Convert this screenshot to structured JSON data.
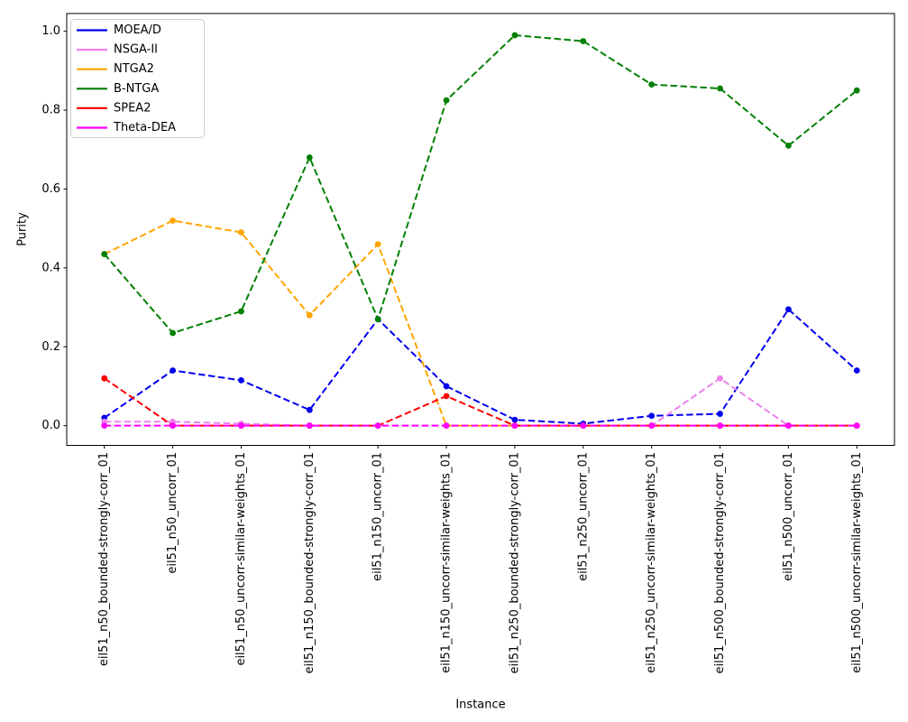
{
  "chart_data": {
    "type": "line",
    "title": "",
    "xlabel": "Instance",
    "ylabel": "Purity",
    "line_style": "dashed",
    "marker": "circle",
    "grid": false,
    "legend_position": "upper left",
    "xlim": [
      -0.55,
      11.55
    ],
    "ylim": [
      -0.05,
      1.045
    ],
    "yticks": [
      {
        "value": 0.0,
        "label": "0.0"
      },
      {
        "value": 0.2,
        "label": "0.2"
      },
      {
        "value": 0.4,
        "label": "0.4"
      },
      {
        "value": 0.6,
        "label": "0.6"
      },
      {
        "value": 0.8,
        "label": "0.8"
      },
      {
        "value": 1.0,
        "label": "1.0"
      }
    ],
    "categories": [
      "eil51_n50_bounded-strongly-corr_01",
      "eil51_n50_uncorr_01",
      "eil51_n50_uncorr-similar-weights_01",
      "eil51_n150_bounded-strongly-corr_01",
      "eil51_n150_uncorr_01",
      "eil51_n150_uncorr-similar-weights_01",
      "eil51_n250_bounded-strongly-corr_01",
      "eil51_n250_uncorr_01",
      "eil51_n250_uncorr-similar-weights_01",
      "eil51_n500_bounded-strongly-corr_01",
      "eil51_n500_uncorr_01",
      "eil51_n500_uncorr-similar-weights_01"
    ],
    "series": [
      {
        "name": "MOEA/D",
        "color": "#0000ee",
        "values": [
          0.02,
          0.14,
          0.115,
          0.04,
          0.27,
          0.1,
          0.015,
          0.005,
          0.025,
          0.03,
          0.295,
          0.14
        ]
      },
      {
        "name": "NSGA-II",
        "color": "#ee82ee",
        "values": [
          0.01,
          0.01,
          0.005,
          0.0,
          0.0,
          0.0,
          0.0,
          0.0,
          0.0,
          0.12,
          0.0,
          0.0
        ]
      },
      {
        "name": "NTGA2",
        "color": "#ffa500",
        "values": [
          0.435,
          0.52,
          0.49,
          0.28,
          0.46,
          0.0,
          0.0,
          0.0,
          0.0,
          0.0,
          0.0,
          0.0
        ]
      },
      {
        "name": "B-NTGA",
        "color": "#008000",
        "values": [
          0.435,
          0.235,
          0.29,
          0.68,
          0.27,
          0.825,
          0.99,
          0.975,
          0.865,
          0.855,
          0.71,
          0.85
        ]
      },
      {
        "name": "SPEA2",
        "color": "#ff0000",
        "values": [
          0.12,
          0.0,
          0.0,
          0.0,
          0.0,
          0.075,
          0.0,
          0.0,
          0.0,
          0.0,
          0.0,
          0.0
        ]
      },
      {
        "name": "Theta-DEA",
        "color": "#ff00ff",
        "values": [
          0.0,
          0.0,
          0.0,
          0.0,
          0.0,
          0.0,
          0.0,
          0.0,
          0.0,
          0.0,
          0.0,
          0.0
        ]
      }
    ]
  }
}
